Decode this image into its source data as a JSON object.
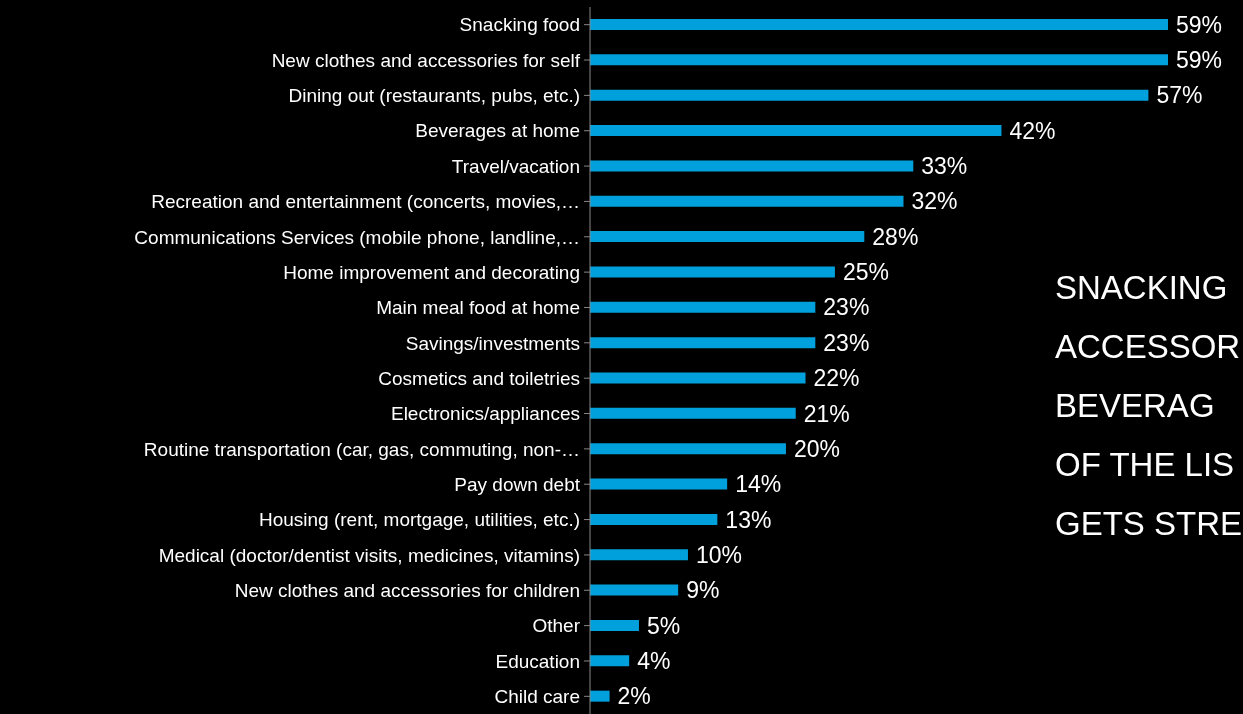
{
  "chart_data": {
    "type": "bar",
    "orientation": "horizontal",
    "categories": [
      "Snacking food",
      "New clothes and accessories for self",
      "Dining out (restaurants, pubs, etc.)",
      "Beverages at home",
      "Travel/vacation",
      "Recreation and entertainment (concerts, movies,…",
      "Communications Services (mobile phone, landline,…",
      "Home improvement and decorating",
      "Main meal food at home",
      "Savings/investments",
      "Cosmetics and toiletries",
      "Electronics/appliances",
      "Routine transportation (car, gas, commuting, non-…",
      "Pay down debt",
      "Housing (rent, mortgage, utilities, etc.)",
      "Medical (doctor/dentist visits, medicines, vitamins)",
      "New clothes and accessories for children",
      "Other",
      "Education",
      "Child care"
    ],
    "values": [
      59,
      59,
      57,
      42,
      33,
      32,
      28,
      25,
      23,
      23,
      22,
      21,
      20,
      14,
      13,
      10,
      9,
      5,
      4,
      2
    ],
    "value_labels": [
      "59%",
      "59%",
      "57%",
      "42%",
      "33%",
      "32%",
      "28%",
      "25%",
      "23%",
      "23%",
      "22%",
      "21%",
      "20%",
      "14%",
      "13%",
      "10%",
      "9%",
      "5%",
      "4%",
      "2%"
    ],
    "color": "#00a0dc",
    "annotations": [
      "SNACKING",
      "ACCESSOR",
      "BEVERAG",
      "OF THE LIS",
      "GETS STRE"
    ]
  }
}
